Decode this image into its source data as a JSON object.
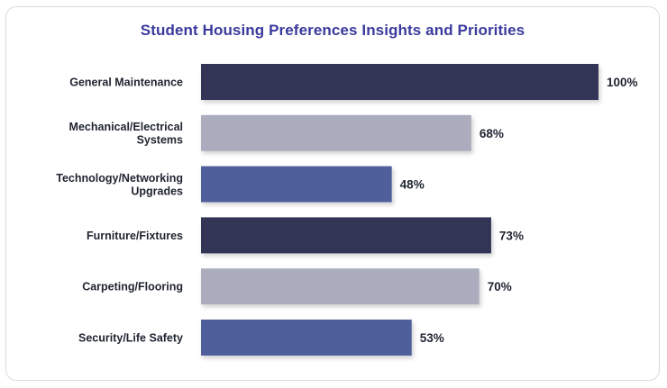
{
  "chart_data": {
    "type": "bar",
    "orientation": "horizontal",
    "title": "Student Housing Preferences Insights and Priorities",
    "categories": [
      [
        "General Maintenance"
      ],
      [
        "Mechanical/Electrical",
        "Systems"
      ],
      [
        "Technology/Networking",
        "Upgrades"
      ],
      [
        "Furniture/Fixtures"
      ],
      [
        "Carpeting/Flooring"
      ],
      [
        "Security/Life Safety"
      ]
    ],
    "values": [
      100,
      68,
      48,
      73,
      70,
      53
    ],
    "value_labels": [
      "100%",
      "68%",
      "48%",
      "73%",
      "70%",
      "53%"
    ],
    "unit": "%",
    "xlim": [
      0,
      100
    ],
    "bar_colors": [
      "#333657",
      "#abadbe",
      "#505f9b",
      "#333657",
      "#abadbe",
      "#505f9b"
    ],
    "grid": false,
    "legend": "none"
  }
}
